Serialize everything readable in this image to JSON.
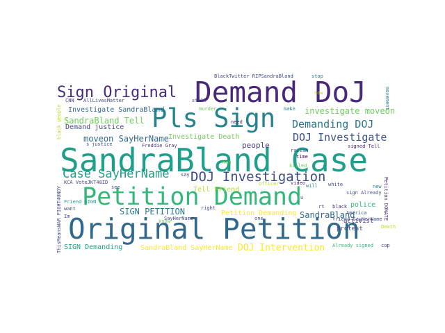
{
  "words": [
    {
      "text": "SandraBland Case",
      "color": "#1f9e89"
    },
    {
      "text": "Original Petition",
      "color": "#31688e"
    },
    {
      "text": "Petition Demand",
      "color": "#35b779"
    },
    {
      "text": "Demand DoJ",
      "color": "#482878"
    },
    {
      "text": "Pls Sign",
      "color": "#26828e"
    },
    {
      "text": "Sign Original",
      "color": "#472c7a"
    },
    {
      "text": "DOJ Investigation",
      "color": "#3e4a89"
    },
    {
      "text": "Case SayHerName",
      "color": "#1f9e89"
    },
    {
      "text": "DOJ Investigate",
      "color": "#3b528b"
    },
    {
      "text": "Demanding DOJ",
      "color": "#2a788e"
    },
    {
      "text": "investigate moveon",
      "color": "#6ece58"
    },
    {
      "text": "SandraBland Tell",
      "color": "#6ece58"
    },
    {
      "text": "Investigate SandraBland",
      "color": "#31688e"
    },
    {
      "text": "Demand justice",
      "color": "#3e4a89"
    },
    {
      "text": "moveon SayHerName",
      "color": "#31688e"
    },
    {
      "text": "SIGN PETITION",
      "color": "#2a788e"
    },
    {
      "text": "DOJ Intervention",
      "color": "#fde725"
    },
    {
      "text": "SandraBland",
      "color": "#31688e"
    },
    {
      "text": "Petition Demanding",
      "color": "#fde725"
    },
    {
      "text": "SandraBland SayHerName",
      "color": "#fde725"
    },
    {
      "text": "SIGN Demanding",
      "color": "#1f9e89"
    },
    {
      "text": "Investigate Death",
      "color": "#6ece58"
    },
    {
      "text": "Tell Friend",
      "color": "#b5de2b"
    },
    {
      "text": "people",
      "color": "#443983"
    },
    {
      "text": "police",
      "color": "#35b779"
    },
    {
      "text": "activist",
      "color": "#482878"
    },
    {
      "text": "protest",
      "color": "#3e4a89"
    },
    {
      "text": "BlackTwitter RIPSandraBland",
      "color": "#3e4a89"
    },
    {
      "text": "stop",
      "color": "#2a788e"
    },
    {
      "text": "now",
      "color": "#b5de2b"
    },
    {
      "text": "make",
      "color": "#26828e"
    },
    {
      "text": "need",
      "color": "#482878"
    },
    {
      "text": "murder",
      "color": "#6ece58"
    },
    {
      "text": "still",
      "color": "#3b528b"
    },
    {
      "text": "Freddie Gray",
      "color": "#443983"
    },
    {
      "text": "justice",
      "color": "#3b528b"
    },
    {
      "text": "signed Tell",
      "color": "#482878"
    },
    {
      "text": "sign Already",
      "color": "#3b528b"
    },
    {
      "text": "Already signed",
      "color": "#35b779"
    },
    {
      "text": "friend SayHerName",
      "color": "#3e4a89"
    },
    {
      "text": "Petition DONATE",
      "color": "#482878"
    },
    {
      "text": "racism",
      "color": "#3b528b"
    },
    {
      "text": "killed",
      "color": "#6ece58"
    },
    {
      "text": "time",
      "color": "#440154"
    },
    {
      "text": "video",
      "color": "#482878"
    },
    {
      "text": "officer",
      "color": "#b5de2b"
    },
    {
      "text": "will",
      "color": "#26828e"
    },
    {
      "text": "white",
      "color": "#3e4a89"
    },
    {
      "text": "black",
      "color": "#472c7a"
    },
    {
      "text": "Death",
      "color": "#b5de2b"
    },
    {
      "text": "cop",
      "color": "#443983"
    },
    {
      "text": "new",
      "color": "#26828e"
    },
    {
      "text": "America",
      "color": "#3b528b"
    },
    {
      "text": "one",
      "color": "#3b528b"
    },
    {
      "text": "right",
      "color": "#3e4a89"
    },
    {
      "text": "know",
      "color": "#6ece58"
    },
    {
      "text": "man",
      "color": "#6ece58"
    },
    {
      "text": "see",
      "color": "#3e4a89"
    },
    {
      "text": "say",
      "color": "#3e4a89"
    },
    {
      "text": "want",
      "color": "#3e4a89"
    },
    {
      "text": "Im",
      "color": "#3e4a89"
    },
    {
      "text": "CNN",
      "color": "#443983"
    },
    {
      "text": "AllLivesMatter",
      "color": "#3e4a89"
    },
    {
      "text": "KCA VoteJKT48ID",
      "color": "#3e4a89"
    },
    {
      "text": "Friend SIGN",
      "color": "#1f9e89"
    },
    {
      "text": "SayHerName",
      "color": "#3e4a89"
    },
    {
      "text": "ThisMeansWAR FIGHT4UNDY",
      "color": "#3e4a89"
    },
    {
      "text": "black people",
      "color": "#b5de2b"
    },
    {
      "text": "movement",
      "color": "#26828e"
    },
    {
      "text": "s",
      "color": "#3e4a89"
    },
    {
      "text": "u",
      "color": "#3e4a89"
    },
    {
      "text": "rt",
      "color": "#3e4a89"
    }
  ]
}
